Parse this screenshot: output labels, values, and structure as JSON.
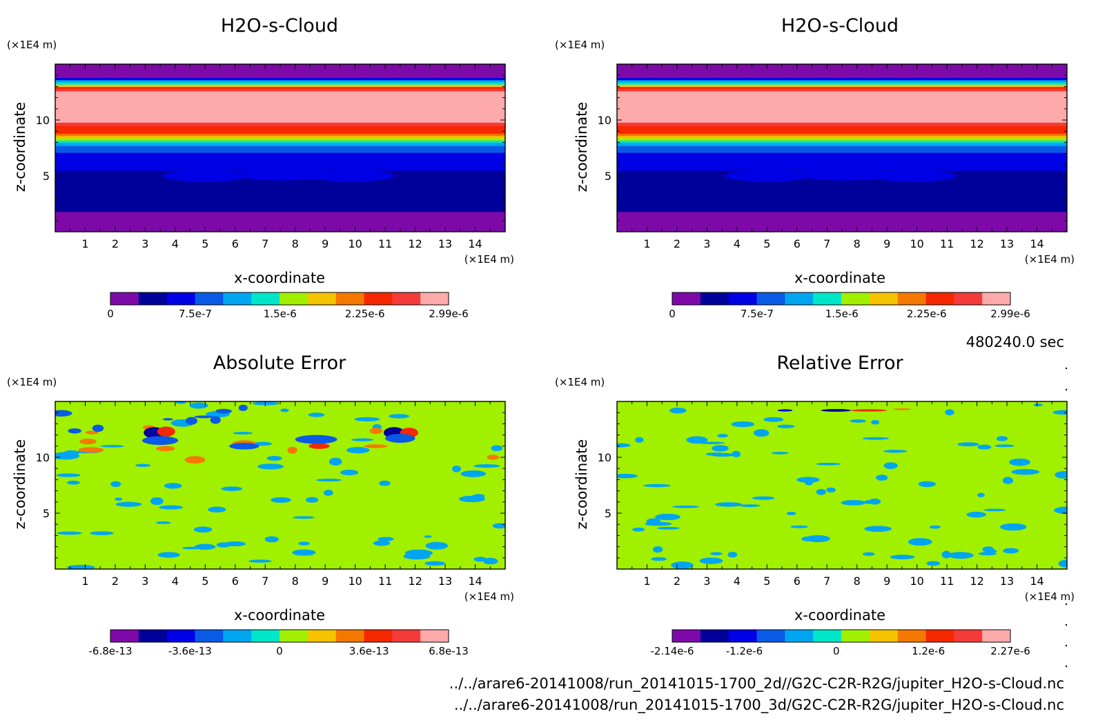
{
  "time_label": "480240.0 sec",
  "files": [
    "../../arare6-20141008/run_20141015-1700_2d//G2C-C2R-R2G/jupiter_H2O-s-Cloud.nc",
    "../../arare6-20141008/run_20141015-1700_3d/G2C-C2R-R2G/jupiter_H2O-s-Cloud.nc"
  ],
  "colors": {
    "ramp": [
      "#7d0aa8",
      "#00009a",
      "#0000e6",
      "#0a5ae6",
      "#00a5f0",
      "#00e6c8",
      "#a0f000",
      "#f5c300",
      "#f57800",
      "#f52800",
      "#f53a3a",
      "#ffaaaa"
    ]
  },
  "chart_data": [
    {
      "type": "heatmap",
      "title": "H2O-s-Cloud",
      "xlabel": "x-coordinate",
      "ylabel": "z-coordinate",
      "xunit": "(×1E4 m)",
      "yunit": "(×1E4 m)",
      "xlim": [
        0,
        15
      ],
      "ylim": [
        0,
        15
      ],
      "xticks": [
        "1",
        "2",
        "3",
        "4",
        "5",
        "6",
        "7",
        "8",
        "9",
        "10",
        "11",
        "12",
        "13",
        "14"
      ],
      "yticks": [
        "5",
        "10"
      ],
      "colorbar": {
        "ticks": [
          "0",
          "7.5e-7",
          "1.5e-6",
          "2.25e-6",
          "2.99e-6"
        ],
        "range": [
          0,
          2.99e-06
        ]
      },
      "field": {
        "kind": "layered",
        "bands": [
          {
            "z_top": 1.8,
            "color_index": 0
          },
          {
            "z_top": 5.5,
            "color_index": 1
          },
          {
            "z_top": 7.1,
            "color_index": 2
          },
          {
            "z_top": 7.7,
            "color_index": 3
          },
          {
            "z_top": 8.0,
            "color_index": 4
          },
          {
            "z_top": 8.2,
            "color_index": 5
          },
          {
            "z_top": 8.4,
            "color_index": 6
          },
          {
            "z_top": 8.6,
            "color_index": 7
          },
          {
            "z_top": 8.8,
            "color_index": 8
          },
          {
            "z_top": 9.5,
            "color_index": 9
          },
          {
            "z_top": 9.8,
            "color_index": 10
          },
          {
            "z_top": 12.6,
            "color_index": 11
          },
          {
            "z_top": 12.8,
            "color_index": 10
          },
          {
            "z_top": 13.0,
            "color_index": 9
          },
          {
            "z_top": 13.2,
            "color_index": 7
          },
          {
            "z_top": 13.4,
            "color_index": 5
          },
          {
            "z_top": 13.6,
            "color_index": 4
          },
          {
            "z_top": 13.8,
            "color_index": 2
          },
          {
            "z_top": 15.0,
            "color_index": 0
          }
        ],
        "blobs": [
          {
            "x": 5.0,
            "z": 5.0,
            "rx": 1.4,
            "rz": 0.5,
            "color_index": 2
          },
          {
            "x": 7.6,
            "z": 5.1,
            "rx": 1.6,
            "rz": 0.5,
            "color_index": 2
          },
          {
            "x": 9.9,
            "z": 5.0,
            "rx": 1.4,
            "rz": 0.5,
            "color_index": 2
          }
        ]
      }
    },
    {
      "type": "heatmap",
      "title": "H2O-s-Cloud",
      "xlabel": "x-coordinate",
      "ylabel": "z-coordinate",
      "xunit": "(×1E4 m)",
      "yunit": "(×1E4 m)",
      "xlim": [
        0,
        15
      ],
      "ylim": [
        0,
        15
      ],
      "xticks": [
        "1",
        "2",
        "3",
        "4",
        "5",
        "6",
        "7",
        "8",
        "9",
        "10",
        "11",
        "12",
        "13",
        "14"
      ],
      "yticks": [
        "5",
        "10"
      ],
      "colorbar": {
        "ticks": [
          "0",
          "7.5e-7",
          "1.5e-6",
          "2.25e-6",
          "2.99e-6"
        ],
        "range": [
          0,
          2.99e-06
        ]
      },
      "field": {
        "kind": "layered",
        "bands": [
          {
            "z_top": 1.8,
            "color_index": 0
          },
          {
            "z_top": 5.5,
            "color_index": 1
          },
          {
            "z_top": 7.1,
            "color_index": 2
          },
          {
            "z_top": 7.7,
            "color_index": 3
          },
          {
            "z_top": 8.0,
            "color_index": 4
          },
          {
            "z_top": 8.2,
            "color_index": 5
          },
          {
            "z_top": 8.4,
            "color_index": 6
          },
          {
            "z_top": 8.6,
            "color_index": 7
          },
          {
            "z_top": 8.8,
            "color_index": 8
          },
          {
            "z_top": 9.5,
            "color_index": 9
          },
          {
            "z_top": 9.8,
            "color_index": 10
          },
          {
            "z_top": 12.6,
            "color_index": 11
          },
          {
            "z_top": 12.8,
            "color_index": 10
          },
          {
            "z_top": 13.0,
            "color_index": 9
          },
          {
            "z_top": 13.2,
            "color_index": 7
          },
          {
            "z_top": 13.4,
            "color_index": 5
          },
          {
            "z_top": 13.6,
            "color_index": 4
          },
          {
            "z_top": 13.8,
            "color_index": 2
          },
          {
            "z_top": 15.0,
            "color_index": 0
          }
        ],
        "blobs": [
          {
            "x": 5.0,
            "z": 5.0,
            "rx": 1.4,
            "rz": 0.5,
            "color_index": 2
          },
          {
            "x": 7.6,
            "z": 5.1,
            "rx": 1.6,
            "rz": 0.5,
            "color_index": 2
          },
          {
            "x": 9.9,
            "z": 5.0,
            "rx": 1.4,
            "rz": 0.5,
            "color_index": 2
          }
        ]
      }
    },
    {
      "type": "heatmap",
      "title": "Absolute Error",
      "xlabel": "x-coordinate",
      "ylabel": "z-coordinate",
      "xunit": "(×1E4 m)",
      "yunit": "(×1E4 m)",
      "xlim": [
        0,
        15
      ],
      "ylim": [
        0,
        15
      ],
      "xticks": [
        "1",
        "2",
        "3",
        "4",
        "5",
        "6",
        "7",
        "8",
        "9",
        "10",
        "11",
        "12",
        "13",
        "14"
      ],
      "yticks": [
        "5",
        "10"
      ],
      "colorbar": {
        "ticks": [
          "-6.8e-13",
          "-3.6e-13",
          "0",
          "3.6e-13",
          "6.8e-13"
        ],
        "range": [
          -6.8e-13,
          6.8e-13
        ]
      },
      "field": {
        "kind": "noise",
        "background_index": 6,
        "blobs": [
          {
            "x": 3.3,
            "z": 12.2,
            "rx": 0.35,
            "rz": 0.5,
            "color_index": 1
          },
          {
            "x": 3.7,
            "z": 12.3,
            "rx": 0.3,
            "rz": 0.45,
            "color_index": 9
          },
          {
            "x": 11.3,
            "z": 12.2,
            "rx": 0.35,
            "rz": 0.5,
            "color_index": 1
          },
          {
            "x": 11.8,
            "z": 12.2,
            "rx": 0.3,
            "rz": 0.45,
            "color_index": 9
          },
          {
            "x": 8.8,
            "z": 11.0,
            "rx": 0.35,
            "rz": 0.25,
            "color_index": 9
          },
          {
            "x": 8.7,
            "z": 11.6,
            "rx": 0.7,
            "rz": 0.4,
            "color_index": 3
          },
          {
            "x": 6.3,
            "z": 11.0,
            "rx": 0.5,
            "rz": 0.3,
            "color_index": 3
          },
          {
            "x": 3.5,
            "z": 11.5,
            "rx": 0.6,
            "rz": 0.4,
            "color_index": 3
          },
          {
            "x": 11.5,
            "z": 11.7,
            "rx": 0.5,
            "rz": 0.4,
            "color_index": 3
          }
        ],
        "speckles": [
          {
            "seed": 11,
            "count": 70,
            "z_min": 0,
            "z_max": 15,
            "color_index": 4
          },
          {
            "seed": 23,
            "count": 12,
            "z_min": 9.5,
            "z_max": 13,
            "color_index": 8
          },
          {
            "seed": 37,
            "count": 10,
            "z_min": 11.5,
            "z_max": 14.5,
            "color_index": 3
          }
        ]
      }
    },
    {
      "type": "heatmap",
      "title": "Relative Error",
      "xlabel": "x-coordinate",
      "ylabel": "z-coordinate",
      "xunit": "(×1E4 m)",
      "yunit": "(×1E4 m)",
      "xlim": [
        0,
        15
      ],
      "ylim": [
        0,
        15
      ],
      "xticks": [
        "1",
        "2",
        "3",
        "4",
        "5",
        "6",
        "7",
        "8",
        "9",
        "10",
        "11",
        "12",
        "13",
        "14"
      ],
      "yticks": [
        "5",
        "10"
      ],
      "colorbar": {
        "ticks": [
          "-2.14e-6",
          "-1.2e-6",
          "0",
          "1.2e-6",
          "2.27e-6"
        ],
        "range": [
          -2.14e-06,
          2.27e-06
        ]
      },
      "field": {
        "kind": "noise",
        "background_index": 6,
        "blobs": [
          {
            "x": 7.3,
            "z": 14.2,
            "rx": 0.5,
            "rz": 0.12,
            "color_index": 1
          },
          {
            "x": 8.4,
            "z": 14.2,
            "rx": 0.6,
            "rz": 0.1,
            "color_index": 9
          },
          {
            "x": 5.6,
            "z": 14.2,
            "rx": 0.25,
            "rz": 0.1,
            "color_index": 2
          },
          {
            "x": 9.5,
            "z": 14.3,
            "rx": 0.3,
            "rz": 0.08,
            "color_index": 8
          }
        ],
        "speckles": [
          {
            "seed": 53,
            "count": 80,
            "z_min": 0,
            "z_max": 15,
            "color_index": 4
          }
        ]
      }
    }
  ]
}
